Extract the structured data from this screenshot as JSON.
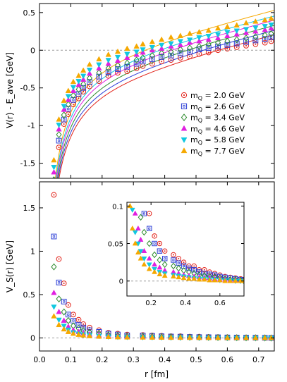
{
  "colors": {
    "2.0": "#e2231a",
    "2.6": "#2c3ed6",
    "3.4": "#2e8b2e",
    "4.6": "#e020e0",
    "5.8": "#10c8e0",
    "7.7": "#f5a800",
    "zero_line": "#9a9a9a",
    "axis": "#000000"
  },
  "chart_data": [
    {
      "type": "scatter",
      "panel": "top",
      "ylabel": "V(r) - E_ave  [GeV]",
      "ylim": [
        -1.7,
        0.62
      ],
      "xlim": [
        0.0,
        0.75
      ],
      "yticks": [
        0.5,
        0,
        -0.5,
        -1,
        -1.5
      ],
      "ytick_labels": [
        "0.5",
        "0",
        "-0.5",
        "-1",
        "-1.5"
      ],
      "zero_line": true,
      "fit_curves": true,
      "legend_position": "right",
      "legend_prefix": "m",
      "legend_sub": "Q",
      "series": [
        {
          "name": " = 2.0 GeV",
          "key": "2.0",
          "marker": "circle",
          "fit": {
            "a": 0.295,
            "b": 0.94,
            "c": -0.395
          },
          "x": [
            0.046,
            0.062,
            0.078,
            0.092,
            0.108,
            0.125,
            0.14,
            0.16,
            0.19,
            0.22,
            0.25,
            0.28,
            0.31,
            0.33,
            0.36,
            0.39,
            0.42,
            0.45,
            0.48,
            0.51,
            0.54,
            0.57,
            0.6,
            0.63,
            0.66,
            0.69,
            0.72,
            0.74
          ],
          "y": [
            -1.92,
            -1.29,
            -0.98,
            -0.85,
            -0.72,
            -0.64,
            -0.55,
            -0.48,
            -0.41,
            -0.34,
            -0.3,
            -0.28,
            -0.24,
            -0.21,
            -0.18,
            -0.15,
            -0.13,
            -0.1,
            -0.08,
            -0.05,
            -0.03,
            0.0,
            0.02,
            0.04,
            0.06,
            0.08,
            0.1,
            0.12
          ]
        },
        {
          "name": " = 2.6 GeV",
          "key": "2.6",
          "marker": "square",
          "fit": {
            "a": 0.275,
            "b": 0.92,
            "c": -0.335
          },
          "x": [
            0.046,
            0.062,
            0.078,
            0.092,
            0.108,
            0.125,
            0.14,
            0.16,
            0.19,
            0.22,
            0.25,
            0.28,
            0.31,
            0.33,
            0.36,
            0.39,
            0.42,
            0.45,
            0.48,
            0.51,
            0.54,
            0.57,
            0.6,
            0.63,
            0.66,
            0.69,
            0.72,
            0.74
          ],
          "y": [
            -1.85,
            -1.2,
            -0.92,
            -0.78,
            -0.66,
            -0.58,
            -0.5,
            -0.42,
            -0.35,
            -0.29,
            -0.25,
            -0.22,
            -0.18,
            -0.15,
            -0.12,
            -0.09,
            -0.07,
            -0.04,
            -0.02,
            0.01,
            0.03,
            0.05,
            0.07,
            0.09,
            0.11,
            0.13,
            0.15,
            0.17
          ]
        },
        {
          "name": " = 3.4 GeV",
          "key": "3.4",
          "marker": "diamond",
          "fit": {
            "a": 0.26,
            "b": 0.9,
            "c": -0.27
          },
          "x": [
            0.046,
            0.062,
            0.078,
            0.092,
            0.108,
            0.125,
            0.14,
            0.16,
            0.19,
            0.22,
            0.25,
            0.28,
            0.31,
            0.33,
            0.36,
            0.39,
            0.42,
            0.45,
            0.48,
            0.51,
            0.54,
            0.57,
            0.6,
            0.63,
            0.66,
            0.69,
            0.72,
            0.74
          ],
          "y": [
            -1.72,
            -1.12,
            -0.86,
            -0.72,
            -0.6,
            -0.52,
            -0.45,
            -0.37,
            -0.3,
            -0.24,
            -0.2,
            -0.17,
            -0.13,
            -0.1,
            -0.07,
            -0.04,
            -0.02,
            0.01,
            0.03,
            0.05,
            0.08,
            0.1,
            0.12,
            0.14,
            0.16,
            0.18,
            0.2,
            0.22
          ]
        },
        {
          "name": " = 4.6 GeV",
          "key": "4.6",
          "marker": "triangle-up",
          "fit": {
            "a": 0.25,
            "b": 0.88,
            "c": -0.2
          },
          "x": [
            0.046,
            0.062,
            0.078,
            0.092,
            0.108,
            0.125,
            0.14,
            0.16,
            0.19,
            0.22,
            0.25,
            0.28,
            0.31,
            0.33,
            0.36,
            0.39,
            0.42,
            0.45,
            0.48,
            0.51,
            0.54,
            0.57,
            0.6,
            0.63,
            0.66,
            0.69,
            0.72,
            0.74
          ],
          "y": [
            -1.62,
            -1.05,
            -0.79,
            -0.66,
            -0.54,
            -0.46,
            -0.39,
            -0.31,
            -0.24,
            -0.18,
            -0.14,
            -0.1,
            -0.06,
            -0.03,
            0.0,
            0.02,
            0.05,
            0.07,
            0.1,
            0.12,
            0.14,
            0.16,
            0.19,
            0.21,
            0.23,
            0.25,
            0.27,
            0.29
          ]
        },
        {
          "name": " = 5.8 GeV",
          "key": "5.8",
          "marker": "triangle-down",
          "fit": {
            "a": 0.24,
            "b": 0.86,
            "c": -0.145
          },
          "x": [
            0.046,
            0.062,
            0.078,
            0.092,
            0.108,
            0.125,
            0.14,
            0.16,
            0.19,
            0.22,
            0.25,
            0.28,
            0.31,
            0.33,
            0.36,
            0.39,
            0.42,
            0.45,
            0.48,
            0.51,
            0.54,
            0.57,
            0.6,
            0.63,
            0.66,
            0.69,
            0.72,
            0.74
          ],
          "y": [
            -1.55,
            -0.99,
            -0.74,
            -0.61,
            -0.49,
            -0.41,
            -0.34,
            -0.26,
            -0.19,
            -0.13,
            -0.09,
            -0.05,
            -0.02,
            0.01,
            0.04,
            0.07,
            0.09,
            0.12,
            0.14,
            0.17,
            0.19,
            0.21,
            0.24,
            0.26,
            0.28,
            0.3,
            0.32,
            0.34
          ]
        },
        {
          "name": " = 7.7 GeV",
          "key": "7.7",
          "marker": "triangle-up",
          "fit": {
            "a": 0.23,
            "b": 0.84,
            "c": -0.07
          },
          "x": [
            0.046,
            0.062,
            0.078,
            0.092,
            0.108,
            0.125,
            0.14,
            0.16,
            0.19,
            0.22,
            0.25,
            0.28,
            0.31,
            0.33,
            0.36,
            0.39,
            0.42,
            0.45,
            0.48,
            0.51,
            0.54,
            0.57,
            0.6,
            0.63,
            0.66,
            0.69,
            0.72,
            0.74
          ],
          "y": [
            -1.46,
            -0.92,
            -0.67,
            -0.54,
            -0.42,
            -0.34,
            -0.27,
            -0.19,
            -0.12,
            -0.06,
            -0.02,
            0.02,
            0.05,
            0.08,
            0.11,
            0.14,
            0.17,
            0.19,
            0.22,
            0.24,
            0.26,
            0.29,
            0.31,
            0.33,
            0.36,
            0.38,
            0.4,
            0.42
          ]
        }
      ]
    },
    {
      "type": "scatter",
      "panel": "bottom",
      "ylabel": "V_S(r)  [GeV]",
      "xlabel": "r  [fm]",
      "xlim": [
        0.0,
        0.75
      ],
      "ylim": [
        -0.15,
        1.8
      ],
      "xticks": [
        0.0,
        0.1,
        0.2,
        0.3,
        0.4,
        0.5,
        0.6,
        0.7
      ],
      "xtick_labels": [
        "0.0",
        "0.1",
        "0.2",
        "0.3",
        "0.4",
        "0.5",
        "0.6",
        "0.7"
      ],
      "yticks": [
        1.5,
        1,
        0.5,
        0
      ],
      "ytick_labels": [
        "1.5",
        "1",
        "0.5",
        "0"
      ],
      "zero_line": true,
      "series": [
        {
          "name": "2.0 GeV",
          "key": "2.0",
          "marker": "circle",
          "x": [
            0.046,
            0.062,
            0.078,
            0.092,
            0.108,
            0.125,
            0.14,
            0.16,
            0.19,
            0.22,
            0.25,
            0.28,
            0.33,
            0.36,
            0.39,
            0.42,
            0.45,
            0.48,
            0.51,
            0.54,
            0.57,
            0.6,
            0.63,
            0.66,
            0.69,
            0.72,
            0.74
          ],
          "y": [
            1.65,
            0.91,
            0.63,
            0.38,
            0.27,
            0.21,
            0.16,
            0.12,
            0.09,
            0.06,
            0.05,
            0.04,
            0.035,
            0.03,
            0.025,
            0.02,
            0.02,
            0.015,
            0.015,
            0.012,
            0.01,
            0.008,
            0.006,
            0.005,
            0.004,
            0.003,
            0.002
          ]
        },
        {
          "name": "2.6 GeV",
          "key": "2.6",
          "marker": "square",
          "x": [
            0.046,
            0.062,
            0.078,
            0.092,
            0.108,
            0.125,
            0.14,
            0.16,
            0.19,
            0.22,
            0.25,
            0.28,
            0.33,
            0.36,
            0.39,
            0.42,
            0.45,
            0.48,
            0.51,
            0.54,
            0.57,
            0.6,
            0.63,
            0.66,
            0.69,
            0.72,
            0.74
          ],
          "y": [
            1.17,
            0.64,
            0.42,
            0.27,
            0.2,
            0.15,
            0.12,
            0.09,
            0.07,
            0.05,
            0.04,
            0.03,
            0.028,
            0.024,
            0.02,
            0.017,
            0.015,
            0.012,
            0.01,
            0.009,
            0.008,
            0.006,
            0.005,
            0.004,
            0.003,
            0.002,
            0.001
          ]
        },
        {
          "name": "3.4 GeV",
          "key": "3.4",
          "marker": "diamond",
          "x": [
            0.046,
            0.062,
            0.078,
            0.092,
            0.108,
            0.125,
            0.14,
            0.16,
            0.19,
            0.22,
            0.25,
            0.28,
            0.33,
            0.36,
            0.39,
            0.42,
            0.45,
            0.48,
            0.51,
            0.54,
            0.57,
            0.6,
            0.63,
            0.66,
            0.69,
            0.72,
            0.74
          ],
          "y": [
            0.82,
            0.45,
            0.3,
            0.2,
            0.14,
            0.11,
            0.085,
            0.065,
            0.05,
            0.035,
            0.028,
            0.022,
            0.02,
            0.017,
            0.014,
            0.012,
            0.01,
            0.008,
            0.007,
            0.006,
            0.005,
            0.004,
            0.003,
            0.002,
            0.002,
            0.001,
            0.0
          ]
        },
        {
          "name": "4.6 GeV",
          "key": "4.6",
          "marker": "triangle-up",
          "x": [
            0.046,
            0.062,
            0.078,
            0.092,
            0.108,
            0.125,
            0.14,
            0.16,
            0.19,
            0.22,
            0.25,
            0.28,
            0.33,
            0.36,
            0.39,
            0.42,
            0.45,
            0.48,
            0.51,
            0.54,
            0.57,
            0.6,
            0.63,
            0.66,
            0.69,
            0.72,
            0.74
          ],
          "y": [
            0.52,
            0.3,
            0.2,
            0.13,
            0.09,
            0.07,
            0.055,
            0.04,
            0.03,
            0.022,
            0.018,
            0.014,
            0.012,
            0.01,
            0.008,
            0.007,
            0.006,
            0.005,
            0.004,
            0.004,
            0.003,
            0.002,
            0.002,
            0.001,
            0.001,
            0.0,
            0.0
          ]
        },
        {
          "name": "5.8 GeV",
          "key": "5.8",
          "marker": "triangle-down",
          "x": [
            0.046,
            0.062,
            0.078,
            0.092,
            0.108,
            0.125,
            0.14,
            0.16,
            0.19,
            0.22,
            0.25,
            0.28,
            0.33,
            0.36,
            0.39,
            0.42,
            0.45,
            0.48,
            0.51,
            0.54,
            0.57,
            0.6,
            0.63,
            0.66,
            0.69,
            0.72,
            0.74
          ],
          "y": [
            0.36,
            0.21,
            0.14,
            0.095,
            0.065,
            0.05,
            0.04,
            0.03,
            0.022,
            0.016,
            0.012,
            0.01,
            0.008,
            0.007,
            0.006,
            0.005,
            0.004,
            0.003,
            0.003,
            0.002,
            0.002,
            0.001,
            0.001,
            0.001,
            0.0,
            0.0,
            0.0
          ]
        },
        {
          "name": "7.7 GeV",
          "key": "7.7",
          "marker": "triangle-up",
          "x": [
            0.046,
            0.062,
            0.078,
            0.092,
            0.108,
            0.125,
            0.14,
            0.16,
            0.19,
            0.22,
            0.25,
            0.28,
            0.33,
            0.36,
            0.39,
            0.42,
            0.45,
            0.48,
            0.51,
            0.54,
            0.57,
            0.6,
            0.63,
            0.66,
            0.69,
            0.72,
            0.74
          ],
          "y": [
            0.25,
            0.15,
            0.1,
            0.07,
            0.05,
            0.038,
            0.03,
            0.022,
            0.016,
            0.012,
            0.009,
            0.007,
            0.006,
            0.005,
            0.004,
            0.003,
            0.003,
            0.002,
            0.002,
            0.001,
            0.001,
            0.001,
            0.0,
            0.0,
            0.0,
            0.0,
            0.0
          ]
        }
      ]
    },
    {
      "type": "scatter",
      "panel": "inset",
      "xlim": [
        0.06,
        0.74
      ],
      "ylim": [
        -0.02,
        0.105
      ],
      "xticks": [
        0.2,
        0.4,
        0.6
      ],
      "xtick_labels": [
        "0.2",
        "0.4",
        "0.6"
      ],
      "yticks": [
        0.1,
        0.05,
        0
      ],
      "ytick_labels": [
        "0.1",
        "0.05",
        "0"
      ],
      "zero_line": true,
      "source": "bottom"
    }
  ]
}
